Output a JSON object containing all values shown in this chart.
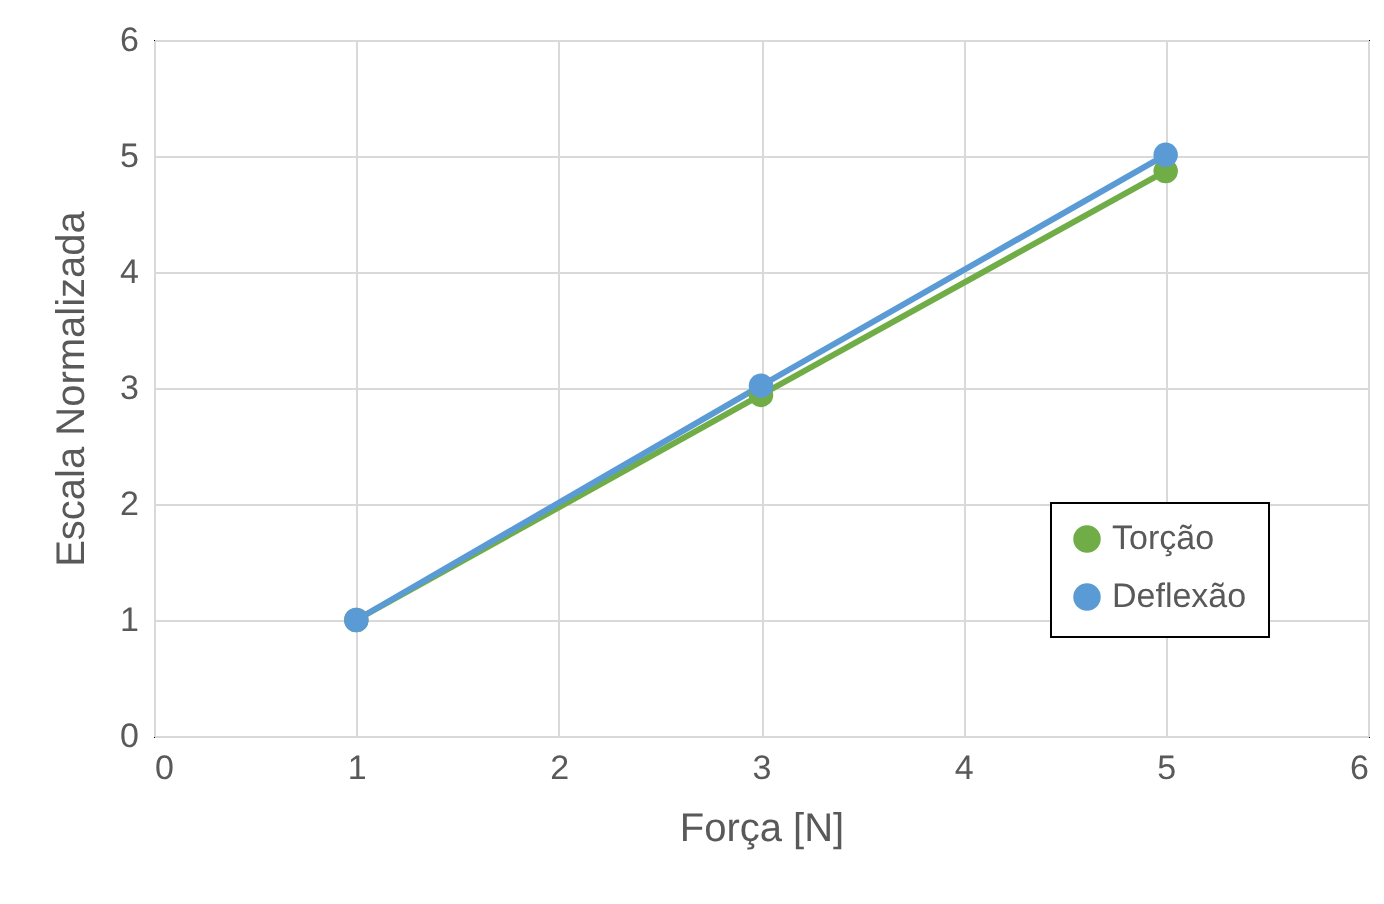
{
  "chart_data": {
    "type": "line",
    "xlabel": "Força [N]",
    "ylabel": "Escala Normalizada",
    "x": [
      1,
      3,
      5
    ],
    "series": [
      {
        "name": "Torção",
        "color": "#70ad47",
        "values": [
          1,
          2.94,
          4.87
        ]
      },
      {
        "name": "Deflexão",
        "color": "#5b9bd5",
        "values": [
          1,
          3.02,
          5.01
        ]
      }
    ],
    "xlim": [
      0,
      6
    ],
    "xticks": [
      0,
      1,
      2,
      3,
      4,
      5,
      6
    ],
    "ylim": [
      0,
      6
    ],
    "yticks": [
      0,
      1,
      2,
      3,
      4,
      5,
      6
    ],
    "grid": true,
    "legend": "bottom right",
    "marker": "circle",
    "line_style": "solid"
  }
}
